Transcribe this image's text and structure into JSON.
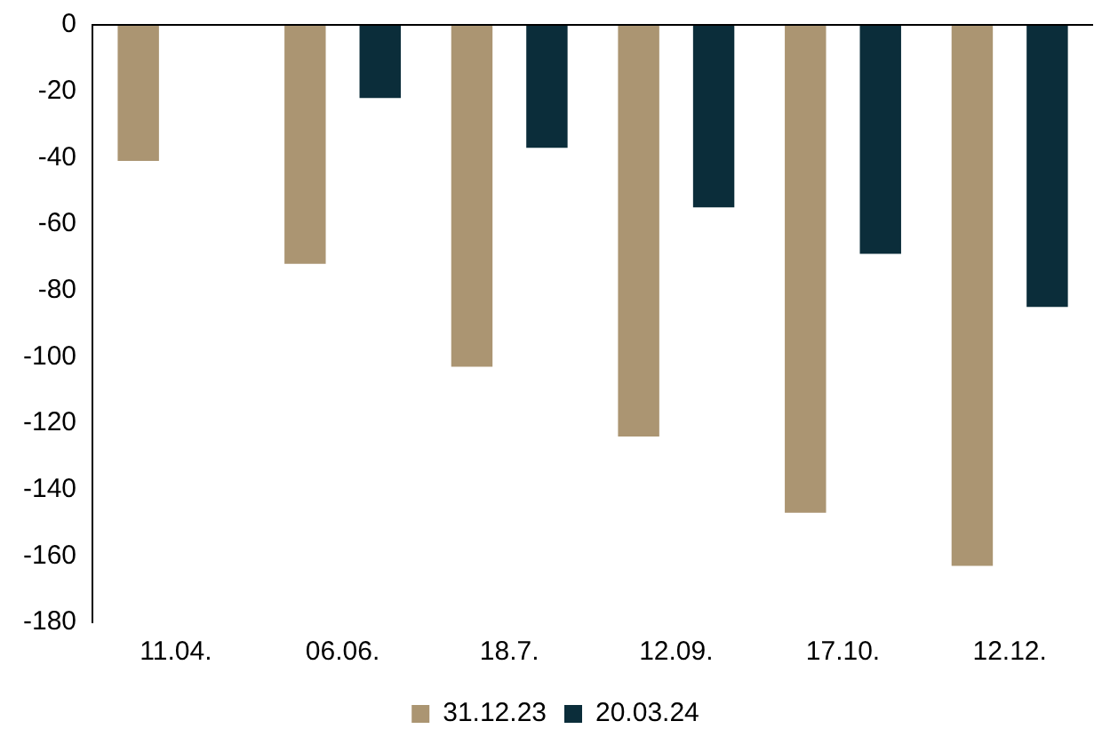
{
  "chart_data": {
    "type": "bar",
    "categories": [
      "11.04.",
      "06.06.",
      "18.7.",
      "12.09.",
      "17.10.",
      "12.12."
    ],
    "series": [
      {
        "name": "31.12.23",
        "color": "#ab9572",
        "values": [
          -41,
          -72,
          -103,
          -124,
          -147,
          -163
        ]
      },
      {
        "name": "20.03.24",
        "color": "#0b2d3a",
        "values": [
          null,
          -22,
          -37,
          -55,
          -69,
          -85
        ]
      }
    ],
    "ylim": [
      -180,
      0
    ],
    "yticks": [
      -180,
      -160,
      -140,
      -120,
      -100,
      -80,
      -60,
      -40,
      -20,
      0
    ],
    "grid": false,
    "legend": "bottom"
  }
}
